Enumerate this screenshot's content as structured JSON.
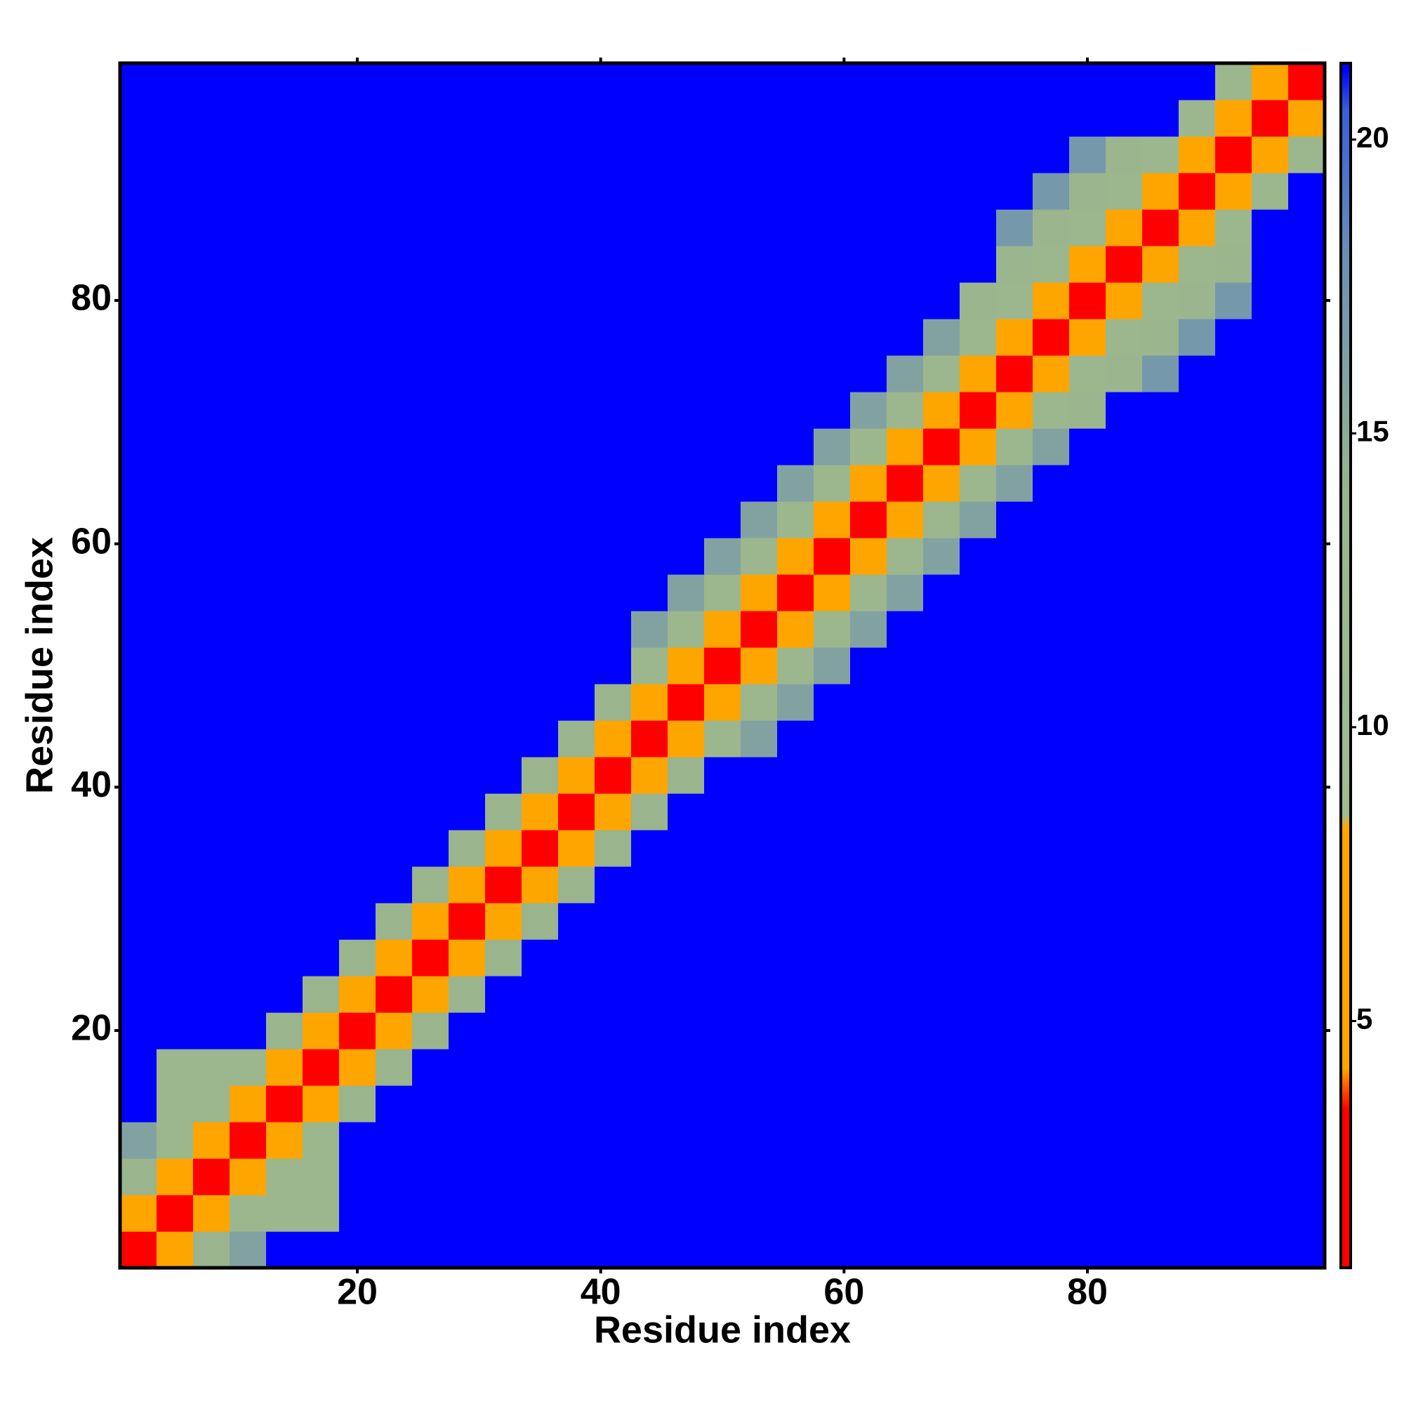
{
  "chart_data": {
    "type": "heatmap",
    "x_label": "Residue index",
    "y_label": "Residue index",
    "x": [
      2,
      5,
      8,
      11,
      14,
      17,
      20,
      23,
      26,
      29,
      32,
      35,
      38,
      41,
      44,
      47,
      50,
      53,
      56,
      59,
      62,
      65,
      68,
      71,
      74,
      77,
      80,
      83,
      86,
      89,
      92,
      95,
      98
    ],
    "y": [
      2,
      5,
      8,
      11,
      14,
      17,
      20,
      23,
      26,
      29,
      32,
      35,
      38,
      41,
      44,
      47,
      50,
      53,
      56,
      59,
      62,
      65,
      68,
      71,
      74,
      77,
      80,
      83,
      86,
      89,
      92,
      95,
      98
    ],
    "xlim": [
      0.5,
      99.5
    ],
    "ylim": [
      0.5,
      99.5
    ],
    "xticks": [
      20,
      40,
      60,
      80
    ],
    "yticks": [
      20,
      40,
      60,
      80
    ],
    "zlim": [
      0.8,
      21.3
    ],
    "zticks": [
      5,
      10,
      15,
      20
    ],
    "colorscale": [
      [
        0.8,
        "#ff0000"
      ],
      [
        3.5,
        "#ff0000"
      ],
      [
        4.2,
        "#ffa500"
      ],
      [
        8.3,
        "#ffa500"
      ],
      [
        8.5,
        "#a0bc8f"
      ],
      [
        14,
        "#9ab48e"
      ],
      [
        18,
        "#6a8fb5"
      ],
      [
        20.5,
        "#3a5fd8"
      ],
      [
        21.2,
        "#0000ff"
      ],
      [
        21.3,
        "#0000ff"
      ]
    ],
    "z": [
      [
        1.5,
        7,
        14,
        16,
        21.2,
        21.2,
        21.2,
        21.2,
        21.2,
        21.2,
        21.2,
        21.2,
        21.2,
        21.2,
        21.2,
        21.2,
        21.2,
        21.2,
        21.2,
        21.2,
        21.2,
        21.2,
        21.2,
        21.2,
        21.2,
        21.2,
        21.2,
        21.2,
        21.2,
        21.2,
        21.2,
        21.2,
        21.2
      ],
      [
        7,
        1.5,
        7,
        12,
        12,
        12,
        21.2,
        21.2,
        21.2,
        21.2,
        21.2,
        21.2,
        21.2,
        21.2,
        21.2,
        21.2,
        21.2,
        21.2,
        21.2,
        21.2,
        21.2,
        21.2,
        21.2,
        21.2,
        21.2,
        21.2,
        21.2,
        21.2,
        21.2,
        21.2,
        21.2,
        21.2,
        21.2
      ],
      [
        14,
        7,
        1.5,
        7,
        12,
        12,
        21.2,
        21.2,
        21.2,
        21.2,
        21.2,
        21.2,
        21.2,
        21.2,
        21.2,
        21.2,
        21.2,
        21.2,
        21.2,
        21.2,
        21.2,
        21.2,
        21.2,
        21.2,
        21.2,
        21.2,
        21.2,
        21.2,
        21.2,
        21.2,
        21.2,
        21.2,
        21.2
      ],
      [
        16,
        12,
        7,
        1.5,
        7,
        12,
        21.2,
        21.2,
        21.2,
        21.2,
        21.2,
        21.2,
        21.2,
        21.2,
        21.2,
        21.2,
        21.2,
        21.2,
        21.2,
        21.2,
        21.2,
        21.2,
        21.2,
        21.2,
        21.2,
        21.2,
        21.2,
        21.2,
        21.2,
        21.2,
        21.2,
        21.2,
        21.2
      ],
      [
        21.2,
        12,
        12,
        7,
        1.5,
        7,
        14,
        21.2,
        21.2,
        21.2,
        21.2,
        21.2,
        21.2,
        21.2,
        21.2,
        21.2,
        21.2,
        21.2,
        21.2,
        21.2,
        21.2,
        21.2,
        21.2,
        21.2,
        21.2,
        21.2,
        21.2,
        21.2,
        21.2,
        21.2,
        21.2,
        21.2,
        21.2
      ],
      [
        21.2,
        12,
        12,
        12,
        7,
        1.5,
        7,
        14,
        21.2,
        21.2,
        21.2,
        21.2,
        21.2,
        21.2,
        21.2,
        21.2,
        21.2,
        21.2,
        21.2,
        21.2,
        21.2,
        21.2,
        21.2,
        21.2,
        21.2,
        21.2,
        21.2,
        21.2,
        21.2,
        21.2,
        21.2,
        21.2,
        21.2
      ],
      [
        21.2,
        21.2,
        21.2,
        21.2,
        14,
        7,
        1.5,
        7,
        14,
        21.2,
        21.2,
        21.2,
        21.2,
        21.2,
        21.2,
        21.2,
        21.2,
        21.2,
        21.2,
        21.2,
        21.2,
        21.2,
        21.2,
        21.2,
        21.2,
        21.2,
        21.2,
        21.2,
        21.2,
        21.2,
        21.2,
        21.2,
        21.2
      ],
      [
        21.2,
        21.2,
        21.2,
        21.2,
        21.2,
        14,
        7,
        1.5,
        7,
        14,
        21.2,
        21.2,
        21.2,
        21.2,
        21.2,
        21.2,
        21.2,
        21.2,
        21.2,
        21.2,
        21.2,
        21.2,
        21.2,
        21.2,
        21.2,
        21.2,
        21.2,
        21.2,
        21.2,
        21.2,
        21.2,
        21.2,
        21.2
      ],
      [
        21.2,
        21.2,
        21.2,
        21.2,
        21.2,
        21.2,
        14,
        7,
        1.5,
        7,
        14,
        21.2,
        21.2,
        21.2,
        21.2,
        21.2,
        21.2,
        21.2,
        21.2,
        21.2,
        21.2,
        21.2,
        21.2,
        21.2,
        21.2,
        21.2,
        21.2,
        21.2,
        21.2,
        21.2,
        21.2,
        21.2,
        21.2
      ],
      [
        21.2,
        21.2,
        21.2,
        21.2,
        21.2,
        21.2,
        21.2,
        14,
        7,
        1.5,
        7,
        14,
        21.2,
        21.2,
        21.2,
        21.2,
        21.2,
        21.2,
        21.2,
        21.2,
        21.2,
        21.2,
        21.2,
        21.2,
        21.2,
        21.2,
        21.2,
        21.2,
        21.2,
        21.2,
        21.2,
        21.2,
        21.2
      ],
      [
        21.2,
        21.2,
        21.2,
        21.2,
        21.2,
        21.2,
        21.2,
        21.2,
        14,
        7,
        1.5,
        7,
        14,
        21.2,
        21.2,
        21.2,
        21.2,
        21.2,
        21.2,
        21.2,
        21.2,
        21.2,
        21.2,
        21.2,
        21.2,
        21.2,
        21.2,
        21.2,
        21.2,
        21.2,
        21.2,
        21.2,
        21.2
      ],
      [
        21.2,
        21.2,
        21.2,
        21.2,
        21.2,
        21.2,
        21.2,
        21.2,
        21.2,
        14,
        7,
        1.5,
        7,
        14,
        21.2,
        21.2,
        21.2,
        21.2,
        21.2,
        21.2,
        21.2,
        21.2,
        21.2,
        21.2,
        21.2,
        21.2,
        21.2,
        21.2,
        21.2,
        21.2,
        21.2,
        21.2,
        21.2
      ],
      [
        21.2,
        21.2,
        21.2,
        21.2,
        21.2,
        21.2,
        21.2,
        21.2,
        21.2,
        21.2,
        14,
        7,
        1.5,
        7,
        14,
        21.2,
        21.2,
        21.2,
        21.2,
        21.2,
        21.2,
        21.2,
        21.2,
        21.2,
        21.2,
        21.2,
        21.2,
        21.2,
        21.2,
        21.2,
        21.2,
        21.2,
        21.2
      ],
      [
        21.2,
        21.2,
        21.2,
        21.2,
        21.2,
        21.2,
        21.2,
        21.2,
        21.2,
        21.2,
        21.2,
        14,
        7,
        1.5,
        7,
        14,
        21.2,
        21.2,
        21.2,
        21.2,
        21.2,
        21.2,
        21.2,
        21.2,
        21.2,
        21.2,
        21.2,
        21.2,
        21.2,
        21.2,
        21.2,
        21.2,
        21.2
      ],
      [
        21.2,
        21.2,
        21.2,
        21.2,
        21.2,
        21.2,
        21.2,
        21.2,
        21.2,
        21.2,
        21.2,
        21.2,
        14,
        7,
        1.5,
        7,
        12,
        16,
        21.2,
        21.2,
        21.2,
        21.2,
        21.2,
        21.2,
        21.2,
        21.2,
        21.2,
        21.2,
        21.2,
        21.2,
        21.2,
        21.2,
        21.2
      ],
      [
        21.2,
        21.2,
        21.2,
        21.2,
        21.2,
        21.2,
        21.2,
        21.2,
        21.2,
        21.2,
        21.2,
        21.2,
        21.2,
        14,
        7,
        1.5,
        7,
        12,
        16,
        21.2,
        21.2,
        21.2,
        21.2,
        21.2,
        21.2,
        21.2,
        21.2,
        21.2,
        21.2,
        21.2,
        21.2,
        21.2,
        21.2
      ],
      [
        21.2,
        21.2,
        21.2,
        21.2,
        21.2,
        21.2,
        21.2,
        21.2,
        21.2,
        21.2,
        21.2,
        21.2,
        21.2,
        21.2,
        12,
        7,
        1.5,
        7,
        12,
        16,
        21.2,
        21.2,
        21.2,
        21.2,
        21.2,
        21.2,
        21.2,
        21.2,
        21.2,
        21.2,
        21.2,
        21.2,
        21.2
      ],
      [
        21.2,
        21.2,
        21.2,
        21.2,
        21.2,
        21.2,
        21.2,
        21.2,
        21.2,
        21.2,
        21.2,
        21.2,
        21.2,
        21.2,
        16,
        12,
        7,
        1.5,
        7,
        12,
        16,
        21.2,
        21.2,
        21.2,
        21.2,
        21.2,
        21.2,
        21.2,
        21.2,
        21.2,
        21.2,
        21.2,
        21.2
      ],
      [
        21.2,
        21.2,
        21.2,
        21.2,
        21.2,
        21.2,
        21.2,
        21.2,
        21.2,
        21.2,
        21.2,
        21.2,
        21.2,
        21.2,
        21.2,
        16,
        12,
        7,
        1.5,
        7,
        12,
        16,
        21.2,
        21.2,
        21.2,
        21.2,
        21.2,
        21.2,
        21.2,
        21.2,
        21.2,
        21.2,
        21.2
      ],
      [
        21.2,
        21.2,
        21.2,
        21.2,
        21.2,
        21.2,
        21.2,
        21.2,
        21.2,
        21.2,
        21.2,
        21.2,
        21.2,
        21.2,
        21.2,
        21.2,
        16,
        12,
        7,
        1.5,
        7,
        12,
        16,
        21.2,
        21.2,
        21.2,
        21.2,
        21.2,
        21.2,
        21.2,
        21.2,
        21.2,
        21.2
      ],
      [
        21.2,
        21.2,
        21.2,
        21.2,
        21.2,
        21.2,
        21.2,
        21.2,
        21.2,
        21.2,
        21.2,
        21.2,
        21.2,
        21.2,
        21.2,
        21.2,
        21.2,
        16,
        12,
        7,
        1.5,
        7,
        12,
        16,
        21.2,
        21.2,
        21.2,
        21.2,
        21.2,
        21.2,
        21.2,
        21.2,
        21.2
      ],
      [
        21.2,
        21.2,
        21.2,
        21.2,
        21.2,
        21.2,
        21.2,
        21.2,
        21.2,
        21.2,
        21.2,
        21.2,
        21.2,
        21.2,
        21.2,
        21.2,
        21.2,
        21.2,
        16,
        12,
        7,
        1.5,
        7,
        12,
        16,
        21.2,
        21.2,
        21.2,
        21.2,
        21.2,
        21.2,
        21.2,
        21.2
      ],
      [
        21.2,
        21.2,
        21.2,
        21.2,
        21.2,
        21.2,
        21.2,
        21.2,
        21.2,
        21.2,
        21.2,
        21.2,
        21.2,
        21.2,
        21.2,
        21.2,
        21.2,
        21.2,
        21.2,
        16,
        12,
        7,
        1.5,
        7,
        12,
        16,
        21.2,
        21.2,
        21.2,
        21.2,
        21.2,
        21.2,
        21.2
      ],
      [
        21.2,
        21.2,
        21.2,
        21.2,
        21.2,
        21.2,
        21.2,
        21.2,
        21.2,
        21.2,
        21.2,
        21.2,
        21.2,
        21.2,
        21.2,
        21.2,
        21.2,
        21.2,
        21.2,
        21.2,
        16,
        12,
        7,
        1.5,
        7,
        12,
        13,
        21.2,
        21.2,
        21.2,
        21.2,
        21.2,
        21.2
      ],
      [
        21.2,
        21.2,
        21.2,
        21.2,
        21.2,
        21.2,
        21.2,
        21.2,
        21.2,
        21.2,
        21.2,
        21.2,
        21.2,
        21.2,
        21.2,
        21.2,
        21.2,
        21.2,
        21.2,
        21.2,
        21.2,
        16,
        12,
        7,
        1.5,
        7,
        12,
        13,
        17,
        21.2,
        21.2,
        21.2,
        21.2
      ],
      [
        21.2,
        21.2,
        21.2,
        21.2,
        21.2,
        21.2,
        21.2,
        21.2,
        21.2,
        21.2,
        21.2,
        21.2,
        21.2,
        21.2,
        21.2,
        21.2,
        21.2,
        21.2,
        21.2,
        21.2,
        21.2,
        21.2,
        16,
        12,
        7,
        1.5,
        7,
        12,
        13,
        17,
        21.2,
        21.2,
        21.2
      ],
      [
        21.2,
        21.2,
        21.2,
        21.2,
        21.2,
        21.2,
        21.2,
        21.2,
        21.2,
        21.2,
        21.2,
        21.2,
        21.2,
        21.2,
        21.2,
        21.2,
        21.2,
        21.2,
        21.2,
        21.2,
        21.2,
        21.2,
        21.2,
        13,
        12,
        7,
        1.5,
        7,
        12,
        13,
        17,
        21.2,
        21.2
      ],
      [
        21.2,
        21.2,
        21.2,
        21.2,
        21.2,
        21.2,
        21.2,
        21.2,
        21.2,
        21.2,
        21.2,
        21.2,
        21.2,
        21.2,
        21.2,
        21.2,
        21.2,
        21.2,
        21.2,
        21.2,
        21.2,
        21.2,
        21.2,
        21.2,
        13,
        12,
        7,
        1.5,
        7,
        12,
        13,
        21.2,
        21.2
      ],
      [
        21.2,
        21.2,
        21.2,
        21.2,
        21.2,
        21.2,
        21.2,
        21.2,
        21.2,
        21.2,
        21.2,
        21.2,
        21.2,
        21.2,
        21.2,
        21.2,
        21.2,
        21.2,
        21.2,
        21.2,
        21.2,
        21.2,
        21.2,
        21.2,
        17,
        13,
        12,
        7,
        1.5,
        7,
        12,
        21.2,
        21.2
      ],
      [
        21.2,
        21.2,
        21.2,
        21.2,
        21.2,
        21.2,
        21.2,
        21.2,
        21.2,
        21.2,
        21.2,
        21.2,
        21.2,
        21.2,
        21.2,
        21.2,
        21.2,
        21.2,
        21.2,
        21.2,
        21.2,
        21.2,
        21.2,
        21.2,
        21.2,
        17,
        13,
        12,
        7,
        1.5,
        7,
        12,
        21.2
      ],
      [
        21.2,
        21.2,
        21.2,
        21.2,
        21.2,
        21.2,
        21.2,
        21.2,
        21.2,
        21.2,
        21.2,
        21.2,
        21.2,
        21.2,
        21.2,
        21.2,
        21.2,
        21.2,
        21.2,
        21.2,
        21.2,
        21.2,
        21.2,
        21.2,
        21.2,
        21.2,
        17,
        13,
        12,
        7,
        1.5,
        7,
        12
      ],
      [
        21.2,
        21.2,
        21.2,
        21.2,
        21.2,
        21.2,
        21.2,
        21.2,
        21.2,
        21.2,
        21.2,
        21.2,
        21.2,
        21.2,
        21.2,
        21.2,
        21.2,
        21.2,
        21.2,
        21.2,
        21.2,
        21.2,
        21.2,
        21.2,
        21.2,
        21.2,
        21.2,
        21.2,
        21.2,
        12,
        7,
        1.5,
        7
      ],
      [
        21.2,
        21.2,
        21.2,
        21.2,
        21.2,
        21.2,
        21.2,
        21.2,
        21.2,
        21.2,
        21.2,
        21.2,
        21.2,
        21.2,
        21.2,
        21.2,
        21.2,
        21.2,
        21.2,
        21.2,
        21.2,
        21.2,
        21.2,
        21.2,
        21.2,
        21.2,
        21.2,
        21.2,
        21.2,
        21.2,
        12,
        7,
        1.5
      ]
    ]
  }
}
